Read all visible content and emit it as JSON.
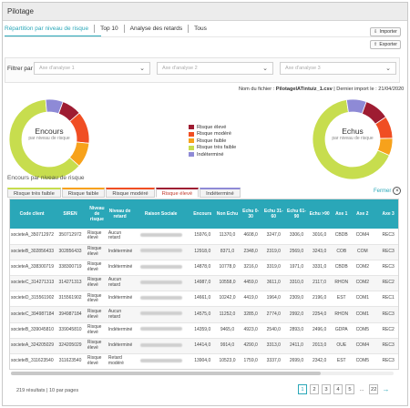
{
  "window": {
    "title": "Pilotage"
  },
  "tabs": [
    {
      "label": "Répartition par niveau de risque"
    },
    {
      "label": "Top 10"
    },
    {
      "label": "Analyse des retards"
    },
    {
      "label": "Tous"
    }
  ],
  "actions": {
    "import_label": "Importer",
    "export_label": "Exporter"
  },
  "filter": {
    "label": "Filtrer par",
    "axis1_placeholder": "Axe d'analyse 1",
    "axis2_placeholder": "Axe d'analyse 2",
    "axis3_placeholder": "Axe d'analyse 3"
  },
  "file_info": {
    "name_label": "Nom du fichier :",
    "name_value": "PilotageIATintuiz_1.csv",
    "import_label": "Dernier import le :",
    "import_value": "21/04/2020"
  },
  "charts": {
    "encours": {
      "title": "Encours",
      "subtitle": "par niveau de risque"
    },
    "echus": {
      "title": "Echus",
      "subtitle": "par niveau de risque"
    }
  },
  "chart_data": [
    {
      "type": "pie",
      "title": "Encours",
      "subtitle": "par niveau de risque",
      "categories": [
        "Risque élevé",
        "Risque modéré",
        "Risque faible",
        "Risque très faible",
        "Indéterminé"
      ],
      "values": [
        8,
        13,
        10,
        62,
        7
      ],
      "colors": [
        "#9e1c32",
        "#f04e23",
        "#f7a21b",
        "#c7dd4e",
        "#8e8ad6"
      ]
    },
    {
      "type": "pie",
      "title": "Echus",
      "subtitle": "par niveau de risque",
      "categories": [
        "Risque élevé",
        "Risque modéré",
        "Risque faible",
        "Risque très faible",
        "Indéterminé"
      ],
      "values": [
        10,
        9,
        7,
        66,
        8
      ],
      "colors": [
        "#9e1c32",
        "#f04e23",
        "#f7a21b",
        "#c7dd4e",
        "#8e8ad6"
      ]
    }
  ],
  "legend": [
    {
      "label": "Risque élevé",
      "color": "#9e1c32"
    },
    {
      "label": "Risque modéré",
      "color": "#f04e23"
    },
    {
      "label": "Risque faible",
      "color": "#f7a21b"
    },
    {
      "label": "Risque très faible",
      "color": "#c7dd4e"
    },
    {
      "label": "Indéterminé",
      "color": "#8e8ad6"
    }
  ],
  "section": {
    "title": "Encours par niveau de risque",
    "close_label": "Fermer",
    "tabs": [
      {
        "label": "Risque très faible",
        "color": "#c7dd4e"
      },
      {
        "label": "Risque faible",
        "color": "#f7a21b"
      },
      {
        "label": "Risque modéré",
        "color": "#f04e23"
      },
      {
        "label": "Risque élevé",
        "color": "#9e1c32",
        "active": true
      },
      {
        "label": "Indéterminé",
        "color": "#8e8ad6"
      }
    ]
  },
  "table": {
    "columns": [
      "Code client",
      "SIREN",
      "Niveau de risque",
      "Niveau de retard",
      "Raison Sociale",
      "Encours",
      "Non Echu",
      "Echu 0-30",
      "Echu 31-60",
      "Echu 61-90",
      "Echu >90",
      "Axe 1",
      "Axe 2",
      "Axe 3"
    ],
    "rows": [
      [
        "societeA_350712972",
        "350712972",
        "Risque élevé",
        "Aucun retard",
        "",
        "15976,0",
        "11370,0",
        "4608,0",
        "3247,0",
        "3306,0",
        "3016,0",
        "CBDB",
        "COM4",
        "REC3"
      ],
      [
        "societeB_302856433",
        "302856433",
        "Risque élevé",
        "Indéterminé",
        "",
        "12918,0",
        "8371,0",
        "2348,0",
        "2319,0",
        "2569,0",
        "3243,0",
        "COB",
        "COM",
        "REC3"
      ],
      [
        "societeA_338300719",
        "338300719",
        "Risque élevé",
        "Indéterminé",
        "",
        "14878,0",
        "10778,0",
        "3216,0",
        "3319,0",
        "1971,0",
        "3331,0",
        "CBDB",
        "COM2",
        "REC3"
      ],
      [
        "societeC_314271313",
        "314271313",
        "Risque élevé",
        "Aucun retard",
        "",
        "14987,0",
        "10558,0",
        "4459,0",
        "3611,0",
        "3310,0",
        "2117,0",
        "RHON",
        "COM2",
        "REC2"
      ],
      [
        "societeD_315561902",
        "315561902",
        "Risque élevé",
        "Indéterminé",
        "",
        "14661,0",
        "10242,0",
        "4419,0",
        "1964,0",
        "2309,0",
        "2196,0",
        "EST",
        "COM1",
        "REC1"
      ],
      [
        "societeC_394987184",
        "394987184",
        "Risque élevé",
        "Aucun retard",
        "",
        "14575,0",
        "11252,0",
        "3285,0",
        "2774,0",
        "2992,0",
        "2254,0",
        "RHON",
        "COM1",
        "REC3"
      ],
      [
        "societeB_339045810",
        "339045810",
        "Risque élevé",
        "Indéterminé",
        "",
        "14359,0",
        "9465,0",
        "4923,0",
        "2540,0",
        "2893,0",
        "2496,0",
        "GDPA",
        "COM5",
        "REC2"
      ],
      [
        "societeA_324205029",
        "324205029",
        "Risque élevé",
        "Indéterminé",
        "",
        "14414,0",
        "9914,0",
        "4290,0",
        "3313,0",
        "2411,0",
        "2013,0",
        "OUE",
        "COM4",
        "REC3"
      ],
      [
        "societeB_311623540",
        "311623540",
        "Risque élevé",
        "Retard modéré",
        "",
        "13904,0",
        "10523,0",
        "1759,0",
        "3337,0",
        "2699,0",
        "2342,0",
        "EST",
        "COM5",
        "REC3"
      ],
      [
        "societeD_327284279",
        "327284279",
        "Risque élevé",
        "Aucun retard",
        "",
        "13903,0",
        "8947,0",
        "4956,0",
        "2411,0",
        "2819,0",
        "2310,0",
        "GDPA",
        "COM4",
        "REC1"
      ]
    ]
  },
  "pagination": {
    "results": "219 résultats",
    "per_page": "10 par pages",
    "pages": [
      "1",
      "2",
      "3",
      "4",
      "5",
      "...",
      "22"
    ],
    "current": "1"
  }
}
